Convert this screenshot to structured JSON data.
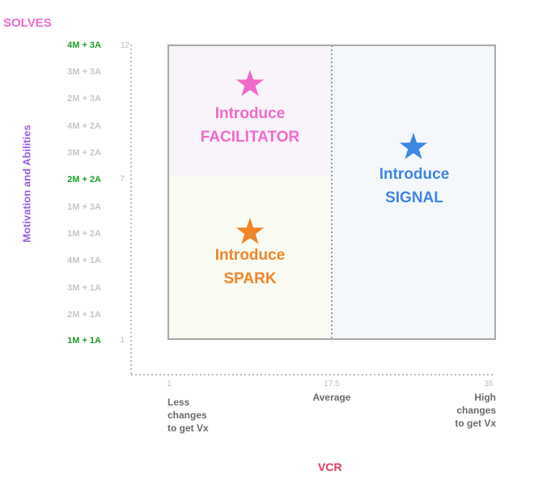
{
  "corner_label": "SOLVES",
  "y_axis": {
    "label": "Motivation and Abilities",
    "ticks": [
      "4M + 3A",
      "3M + 3A",
      "2M + 3A",
      "4M + 2A",
      "3M + 2A",
      "2M + 2A",
      "1M + 3A",
      "1M + 2A",
      "4M + 1A",
      "3M + 1A",
      "2M + 1A",
      "1M + 1A"
    ],
    "numbers": [
      "12",
      "7",
      "1"
    ]
  },
  "x_axis": {
    "label": "VCR",
    "numbers": [
      "1",
      "17.5",
      "35"
    ],
    "descriptions": {
      "left": [
        "Less",
        "changes",
        "to get Vx"
      ],
      "center": [
        "Average"
      ],
      "right": [
        "High",
        "changes",
        "to get Vx"
      ]
    }
  },
  "quadrants": {
    "facilitator": {
      "line1": "Introduce",
      "line2": "FACILITATOR",
      "color": "#f06bc9",
      "icon": "star-icon"
    },
    "spark": {
      "line1": "Introduce",
      "line2": "SPARK",
      "color": "#f08428",
      "icon": "star-icon"
    },
    "signal": {
      "line1": "Introduce",
      "line2": "SIGNAL",
      "color": "#3e87e4",
      "icon": "star-icon"
    }
  },
  "colors": {
    "facilitator_bg": "#f9f3fa",
    "spark_bg": "#fafbf2",
    "signal_bg": "#f5f8fb",
    "highlight_tick": "#1c9a2f"
  }
}
